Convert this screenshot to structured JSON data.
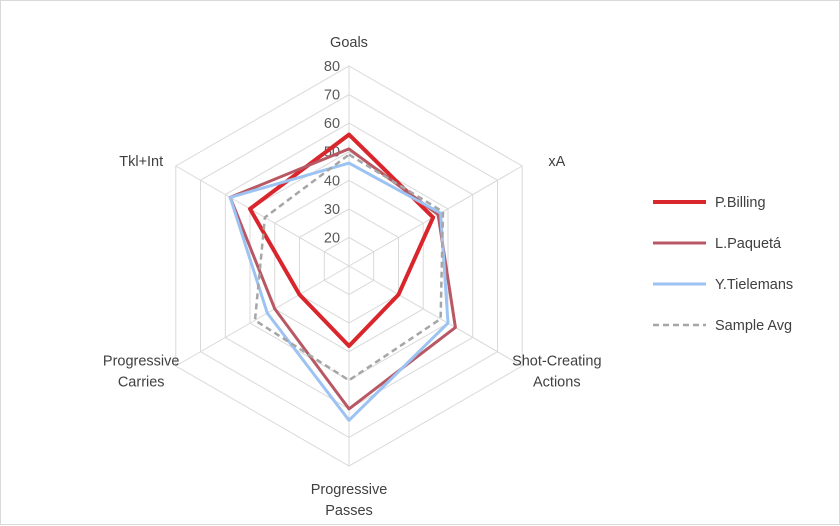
{
  "chart_data": {
    "type": "radar",
    "axes": [
      "Goals",
      "xA",
      "Shot-Creating Actions",
      "Progressive Passes",
      "Progressive Carries",
      "Tkl+Int"
    ],
    "axis_label_lines": [
      [
        "Goals"
      ],
      [
        "xA"
      ],
      [
        "Shot-Creating",
        "Actions"
      ],
      [
        "Progressive",
        "Passes"
      ],
      [
        "Progressive",
        "Carries"
      ],
      [
        "Tkl+Int"
      ]
    ],
    "r_ticks": [
      20,
      30,
      40,
      50,
      60,
      70,
      80
    ],
    "rlim": [
      10,
      80
    ],
    "grid": true,
    "legend_position": "right",
    "series": [
      {
        "name": "P.Billing",
        "color": "#d9262c",
        "width": 4,
        "dash": "",
        "values": [
          56,
          44,
          30,
          38,
          30,
          50
        ]
      },
      {
        "name": "L.Paquetá",
        "color": "#b85864",
        "width": 3,
        "dash": "",
        "values": [
          51,
          46,
          53,
          60,
          40,
          58
        ]
      },
      {
        "name": "Y.Tielemans",
        "color": "#9dc3f2",
        "width": 3,
        "dash": "",
        "values": [
          46,
          47,
          50,
          64,
          43,
          58
        ]
      },
      {
        "name": "Sample Avg",
        "color": "#a6a6a6",
        "width": 2.5,
        "dash": "6,4",
        "values": [
          49,
          48,
          47,
          50,
          48,
          44
        ]
      }
    ]
  }
}
